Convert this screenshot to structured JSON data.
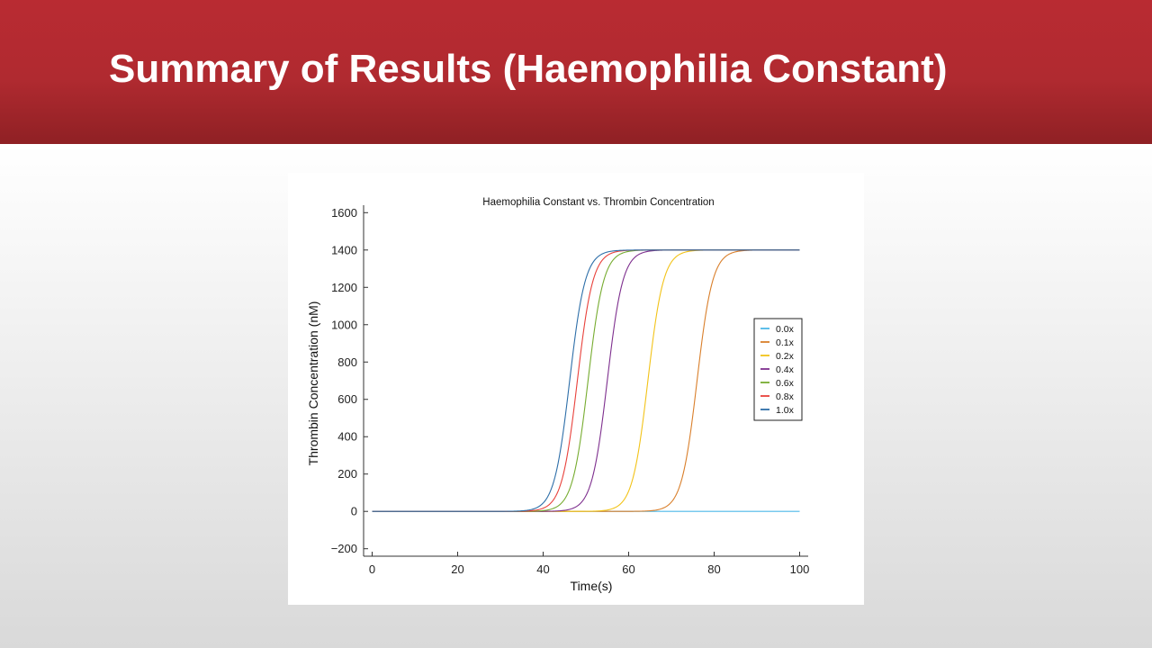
{
  "slide": {
    "title": "Summary of Results (Haemophilia Constant)"
  },
  "chart_data": {
    "type": "line",
    "title": "Haemophilia Constant vs. Thrombin Concentration",
    "xlabel": "Time(s)",
    "ylabel": "Thrombin Concentration (nM)",
    "xlim": [
      -2,
      102
    ],
    "ylim": [
      -240,
      1640
    ],
    "xticks": [
      0,
      20,
      40,
      60,
      80,
      100
    ],
    "yticks": [
      -200,
      0,
      200,
      400,
      600,
      800,
      1000,
      1200,
      1400,
      1600
    ],
    "ytick_labels": [
      "−200",
      "0",
      "200",
      "400",
      "600",
      "800",
      "1000",
      "1200",
      "1400",
      "1600"
    ],
    "grid": false,
    "legend_position": "right",
    "x_range": [
      0,
      100
    ],
    "plateau": 1400,
    "series": [
      {
        "name": "0.0x",
        "color": "#4db8e8",
        "midpoint": null
      },
      {
        "name": "0.1x",
        "color": "#d97f2b",
        "midpoint": 76
      },
      {
        "name": "0.2x",
        "color": "#f2c318",
        "midpoint": 64.5
      },
      {
        "name": "0.4x",
        "color": "#7e2f8e",
        "midpoint": 55
      },
      {
        "name": "0.6x",
        "color": "#77ac30",
        "midpoint": 50.5
      },
      {
        "name": "0.8x",
        "color": "#e8413b",
        "midpoint": 48
      },
      {
        "name": "1.0x",
        "color": "#2d6ea8",
        "midpoint": 46.2
      }
    ]
  }
}
